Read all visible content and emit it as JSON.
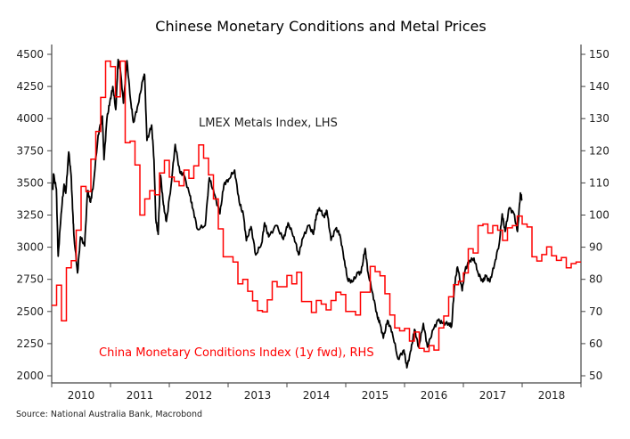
{
  "chart_data": {
    "type": "line",
    "title": "Chinese Monetary Conditions and Metal Prices",
    "source": "Source: National Australia Bank, Macrobond",
    "x_ticks": [
      "2010",
      "2011",
      "2012",
      "2013",
      "2014",
      "2015",
      "2016",
      "2017",
      "2018"
    ],
    "xlim": [
      2010,
      2019
    ],
    "y_left": {
      "lim": [
        2000,
        4500
      ],
      "ticks": [
        "4500",
        "4250",
        "4000",
        "3750",
        "3500",
        "3250",
        "3000",
        "2750",
        "2500",
        "2250",
        "2000"
      ]
    },
    "y_right": {
      "lim": [
        50,
        150
      ],
      "ticks": [
        "150",
        "140",
        "130",
        "120",
        "110",
        "100",
        "90",
        "80",
        "70",
        "60",
        "50"
      ]
    },
    "grid": false,
    "series": [
      {
        "name": "LMEX Metals Index, LHS",
        "axis": "left",
        "color": "#000000",
        "points": [
          [
            2010.02,
            3445
          ],
          [
            2010.03,
            3570
          ],
          [
            2010.08,
            3450
          ],
          [
            2010.11,
            2930
          ],
          [
            2010.16,
            3260
          ],
          [
            2010.21,
            3490
          ],
          [
            2010.24,
            3420
          ],
          [
            2010.29,
            3740
          ],
          [
            2010.33,
            3560
          ],
          [
            2010.36,
            3260
          ],
          [
            2010.38,
            3080
          ],
          [
            2010.44,
            2800
          ],
          [
            2010.49,
            3080
          ],
          [
            2010.56,
            3010
          ],
          [
            2010.61,
            3440
          ],
          [
            2010.66,
            3350
          ],
          [
            2010.71,
            3490
          ],
          [
            2010.79,
            3870
          ],
          [
            2010.86,
            4020
          ],
          [
            2010.89,
            3680
          ],
          [
            2010.94,
            4000
          ],
          [
            2010.99,
            4130
          ],
          [
            2011.04,
            4250
          ],
          [
            2011.09,
            4070
          ],
          [
            2011.13,
            4460
          ],
          [
            2011.17,
            4370
          ],
          [
            2011.22,
            4120
          ],
          [
            2011.28,
            4450
          ],
          [
            2011.34,
            4150
          ],
          [
            2011.39,
            3970
          ],
          [
            2011.47,
            4110
          ],
          [
            2011.55,
            4300
          ],
          [
            2011.58,
            4340
          ],
          [
            2011.62,
            3830
          ],
          [
            2011.7,
            3950
          ],
          [
            2011.74,
            3680
          ],
          [
            2011.77,
            3220
          ],
          [
            2011.81,
            3100
          ],
          [
            2011.85,
            3560
          ],
          [
            2011.9,
            3330
          ],
          [
            2011.95,
            3200
          ],
          [
            2012.03,
            3480
          ],
          [
            2012.1,
            3800
          ],
          [
            2012.18,
            3580
          ],
          [
            2012.25,
            3560
          ],
          [
            2012.35,
            3400
          ],
          [
            2012.4,
            3300
          ],
          [
            2012.48,
            3140
          ],
          [
            2012.61,
            3170
          ],
          [
            2012.68,
            3540
          ],
          [
            2012.76,
            3420
          ],
          [
            2012.86,
            3260
          ],
          [
            2012.93,
            3490
          ],
          [
            2013.01,
            3530
          ],
          [
            2013.11,
            3600
          ],
          [
            2013.19,
            3350
          ],
          [
            2013.26,
            3250
          ],
          [
            2013.31,
            3050
          ],
          [
            2013.39,
            3160
          ],
          [
            2013.47,
            2940
          ],
          [
            2013.57,
            3030
          ],
          [
            2013.62,
            3190
          ],
          [
            2013.69,
            3080
          ],
          [
            2013.82,
            3170
          ],
          [
            2013.94,
            3060
          ],
          [
            2014.02,
            3190
          ],
          [
            2014.12,
            3080
          ],
          [
            2014.2,
            2940
          ],
          [
            2014.27,
            3070
          ],
          [
            2014.37,
            3170
          ],
          [
            2014.45,
            3100
          ],
          [
            2014.5,
            3250
          ],
          [
            2014.55,
            3306
          ],
          [
            2014.63,
            3237
          ],
          [
            2014.68,
            3283
          ],
          [
            2014.75,
            3053
          ],
          [
            2014.83,
            3145
          ],
          [
            2014.9,
            3099
          ],
          [
            2014.98,
            2892
          ],
          [
            2015.03,
            2753
          ],
          [
            2015.11,
            2730
          ],
          [
            2015.21,
            2800
          ],
          [
            2015.26,
            2800
          ],
          [
            2015.33,
            2990
          ],
          [
            2015.38,
            2800
          ],
          [
            2015.46,
            2638
          ],
          [
            2015.54,
            2454
          ],
          [
            2015.58,
            2408
          ],
          [
            2015.64,
            2292
          ],
          [
            2015.71,
            2431
          ],
          [
            2015.79,
            2340
          ],
          [
            2015.89,
            2131
          ],
          [
            2015.99,
            2200
          ],
          [
            2016.04,
            2062
          ],
          [
            2016.11,
            2200
          ],
          [
            2016.17,
            2361
          ],
          [
            2016.24,
            2223
          ],
          [
            2016.32,
            2407
          ],
          [
            2016.39,
            2223
          ],
          [
            2016.49,
            2361
          ],
          [
            2016.57,
            2431
          ],
          [
            2016.65,
            2408
          ],
          [
            2016.75,
            2408
          ],
          [
            2016.8,
            2385
          ],
          [
            2016.85,
            2707
          ],
          [
            2016.9,
            2846
          ],
          [
            2016.98,
            2661
          ],
          [
            2017.03,
            2823
          ],
          [
            2017.1,
            2892
          ],
          [
            2017.18,
            2915
          ],
          [
            2017.25,
            2800
          ],
          [
            2017.33,
            2730
          ],
          [
            2017.38,
            2776
          ],
          [
            2017.45,
            2730
          ],
          [
            2017.53,
            2869
          ],
          [
            2017.61,
            3030
          ],
          [
            2017.66,
            3260
          ],
          [
            2017.71,
            3122
          ],
          [
            2017.78,
            3306
          ],
          [
            2017.86,
            3260
          ],
          [
            2017.92,
            3122
          ],
          [
            2017.97,
            3422
          ],
          [
            2018.0,
            3364
          ]
        ]
      },
      {
        "name": "China Monetary Conditions Index (1y fwd), RHS",
        "axis": "right",
        "color": "#ff0000",
        "step": true,
        "points": [
          [
            "2010-01",
            71.9
          ],
          [
            "2010-02",
            78.2
          ],
          [
            "2010-03",
            67.1
          ],
          [
            "2010-04",
            83.6
          ],
          [
            "2010-05",
            85.8
          ],
          [
            "2010-06",
            95.3
          ],
          [
            "2010-07",
            108.9
          ],
          [
            "2010-08",
            107.3
          ],
          [
            "2010-09",
            117.4
          ],
          [
            "2010-10",
            126.0
          ],
          [
            "2010-11",
            136.6
          ],
          [
            "2010-12",
            147.9
          ],
          [
            "2011-01",
            146.2
          ],
          [
            "2011-02",
            136.8
          ],
          [
            "2011-03",
            147.9
          ],
          [
            "2011-04",
            122.5
          ],
          [
            "2011-05",
            123.0
          ],
          [
            "2011-06",
            115.6
          ],
          [
            "2011-07",
            100.0
          ],
          [
            "2011-08",
            105.0
          ],
          [
            "2011-09",
            107.6
          ],
          [
            "2011-10",
            106.3
          ],
          [
            "2011-11",
            113.1
          ],
          [
            "2011-12",
            117.0
          ],
          [
            "2012-01",
            111.8
          ],
          [
            "2012-02",
            110.5
          ],
          [
            "2012-03",
            109.1
          ],
          [
            "2012-04",
            114.0
          ],
          [
            "2012-05",
            111.4
          ],
          [
            "2012-06",
            115.3
          ],
          [
            "2012-07",
            121.8
          ],
          [
            "2012-08",
            117.7
          ],
          [
            "2012-09",
            112.5
          ],
          [
            "2012-10",
            105.0
          ],
          [
            "2012-11",
            95.7
          ],
          [
            "2012-12",
            87.0
          ],
          [
            "2013-02",
            85.4
          ],
          [
            "2013-03",
            78.6
          ],
          [
            "2013-04",
            80.0
          ],
          [
            "2013-05",
            76.3
          ],
          [
            "2013-06",
            73.3
          ],
          [
            "2013-07",
            70.3
          ],
          [
            "2013-08",
            69.9
          ],
          [
            "2013-09",
            73.6
          ],
          [
            "2013-10",
            79.3
          ],
          [
            "2013-11",
            77.7
          ],
          [
            "2014-01",
            81.2
          ],
          [
            "2014-02",
            78.6
          ],
          [
            "2014-03",
            82.2
          ],
          [
            "2014-04",
            73.1
          ],
          [
            "2014-06",
            69.7
          ],
          [
            "2014-07",
            73.4
          ],
          [
            "2014-08",
            72.3
          ],
          [
            "2014-09",
            70.5
          ],
          [
            "2014-10",
            73.4
          ],
          [
            "2014-11",
            76.0
          ],
          [
            "2014-12",
            75.3
          ],
          [
            "2015-01",
            70.0
          ],
          [
            "2015-03",
            68.9
          ],
          [
            "2015-04",
            76.0
          ],
          [
            "2015-06",
            84.0
          ],
          [
            "2015-07",
            82.4
          ],
          [
            "2015-08",
            81.1
          ],
          [
            "2015-09",
            75.5
          ],
          [
            "2015-10",
            68.9
          ],
          [
            "2015-11",
            64.9
          ],
          [
            "2015-12",
            64.0
          ],
          [
            "2016-01",
            64.7
          ],
          [
            "2016-02",
            60.8
          ],
          [
            "2016-03",
            63.6
          ],
          [
            "2016-04",
            58.5
          ],
          [
            "2016-05",
            57.6
          ],
          [
            "2016-06",
            59.4
          ],
          [
            "2016-07",
            58.0
          ],
          [
            "2016-08",
            64.9
          ],
          [
            "2016-09",
            68.6
          ],
          [
            "2016-10",
            74.6
          ],
          [
            "2016-11",
            78.3
          ],
          [
            "2016-12",
            79.4
          ],
          [
            "2017-01",
            82.0
          ],
          [
            "2017-02",
            89.5
          ],
          [
            "2017-03",
            88.2
          ],
          [
            "2017-04",
            96.7
          ],
          [
            "2017-05",
            97.2
          ],
          [
            "2017-06",
            94.4
          ],
          [
            "2017-07",
            96.7
          ],
          [
            "2017-08",
            95.3
          ],
          [
            "2017-09",
            92.1
          ],
          [
            "2017-10",
            96.0
          ],
          [
            "2017-11",
            96.7
          ],
          [
            "2017-12",
            99.7
          ],
          [
            "2018-01",
            97.2
          ],
          [
            "2018-02",
            96.3
          ],
          [
            "2018-03",
            87.0
          ],
          [
            "2018-04",
            85.7
          ],
          [
            "2018-05",
            87.7
          ],
          [
            "2018-06",
            90.1
          ],
          [
            "2018-07",
            87.3
          ],
          [
            "2018-08",
            85.9
          ],
          [
            "2018-09",
            86.8
          ],
          [
            "2018-10",
            83.6
          ],
          [
            "2018-11",
            84.9
          ],
          [
            "2018-12",
            85.4
          ]
        ]
      }
    ],
    "annotations": [
      "LMEX Metals Index, LHS",
      "China Monetary Conditions Index (1y fwd), RHS"
    ]
  }
}
